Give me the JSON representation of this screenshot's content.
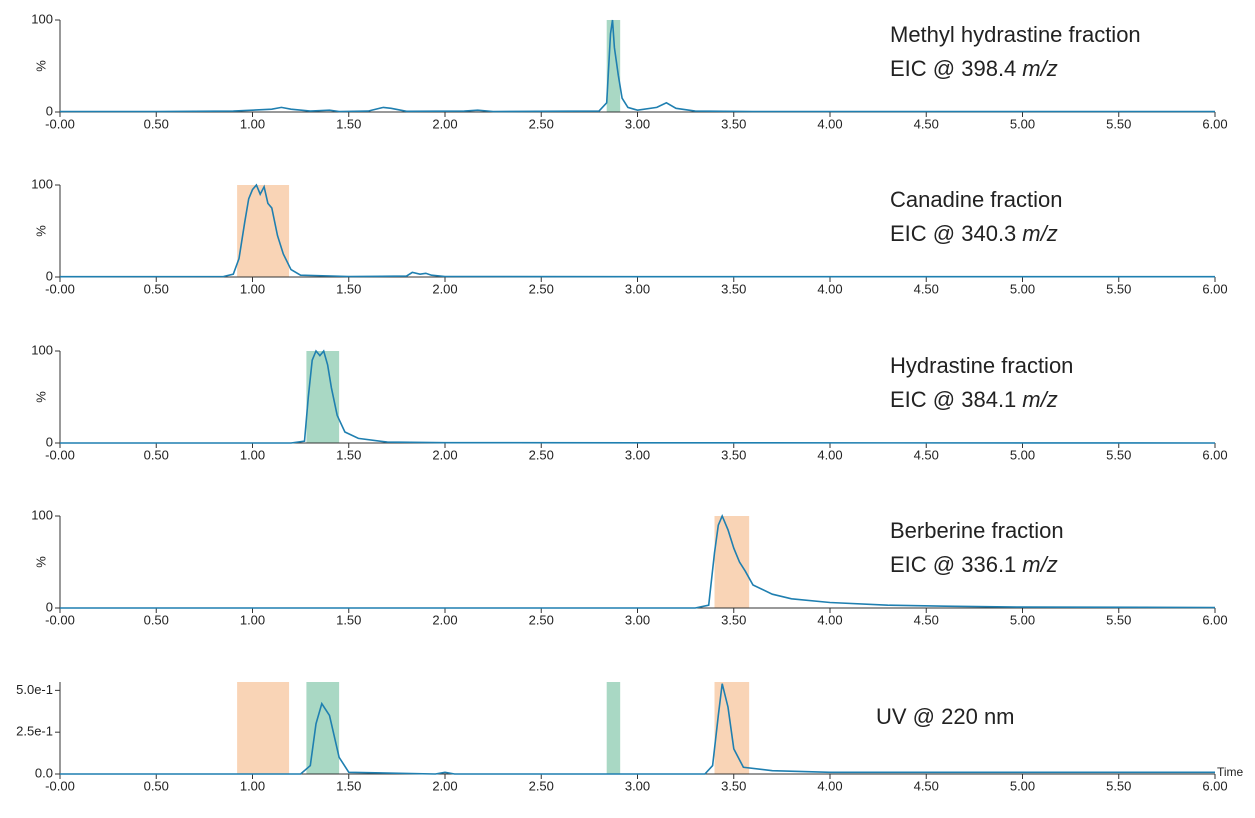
{
  "chart_data": [
    {
      "type": "line",
      "title": "Methyl hydrastine fraction",
      "subtitle": "EIC @ 398.4",
      "subtitle_unit": "m/z",
      "y_label": "%",
      "color": "#1f7fb0",
      "x": [
        0,
        0.5,
        0.9,
        1.1,
        1.15,
        1.2,
        1.3,
        1.4,
        1.45,
        1.6,
        1.68,
        1.72,
        1.8,
        2.1,
        2.17,
        2.25,
        2.8,
        2.84,
        2.86,
        2.87,
        2.88,
        2.9,
        2.92,
        2.95,
        3.0,
        3.1,
        3.15,
        3.2,
        3.3,
        3.6,
        4,
        5,
        6
      ],
      "values": [
        0.5,
        0.5,
        1,
        3,
        5,
        3,
        1,
        2,
        0.5,
        1,
        5,
        4,
        0.8,
        1,
        2,
        0.5,
        1,
        10,
        85,
        100,
        70,
        40,
        15,
        5,
        2,
        5,
        10,
        4,
        1,
        0.5,
        0.5,
        0.5,
        0.5
      ],
      "spans": [
        {
          "x": [
            2.84,
            2.91
          ],
          "color": "#a9d8c4"
        }
      ],
      "xlim": [
        0,
        6
      ],
      "ylim": [
        0,
        100
      ],
      "yticks": [
        0,
        100
      ],
      "xticks": [
        {
          "value": 0,
          "label": "-0.00"
        },
        {
          "value": 0.5,
          "label": "0.50"
        },
        {
          "value": 1,
          "label": "1.00"
        },
        {
          "value": 1.5,
          "label": "1.50"
        },
        {
          "value": 2,
          "label": "2.00"
        },
        {
          "value": 2.5,
          "label": "2.50"
        },
        {
          "value": 3,
          "label": "3.00"
        },
        {
          "value": 3.5,
          "label": "3.50"
        },
        {
          "value": 4,
          "label": "4.00"
        },
        {
          "value": 4.5,
          "label": "4.50"
        },
        {
          "value": 5,
          "label": "5.00"
        },
        {
          "value": 5.5,
          "label": "5.50"
        },
        {
          "value": 6,
          "label": "6.00"
        }
      ]
    },
    {
      "type": "line",
      "title": "Canadine fraction",
      "subtitle": "EIC @ 340.3",
      "subtitle_unit": "m/z",
      "y_label": "%",
      "color": "#1f7fb0",
      "x": [
        0,
        0.85,
        0.9,
        0.93,
        0.96,
        0.98,
        1.0,
        1.02,
        1.04,
        1.06,
        1.08,
        1.1,
        1.13,
        1.16,
        1.2,
        1.25,
        1.5,
        1.8,
        1.83,
        1.87,
        1.9,
        1.93,
        2.0,
        3,
        6
      ],
      "values": [
        0.3,
        0.5,
        3,
        20,
        60,
        85,
        95,
        100,
        90,
        98,
        80,
        75,
        45,
        25,
        8,
        2,
        0.5,
        1,
        5,
        3,
        4,
        2,
        0.5,
        0.3,
        0.3
      ],
      "spans": [
        {
          "x": [
            0.92,
            1.19
          ],
          "color": "#f9d4b6"
        }
      ],
      "xlim": [
        0,
        6
      ],
      "ylim": [
        0,
        100
      ],
      "yticks": [
        0,
        100
      ],
      "xticks": [
        {
          "value": 0,
          "label": "-0.00"
        },
        {
          "value": 0.5,
          "label": "0.50"
        },
        {
          "value": 1,
          "label": "1.00"
        },
        {
          "value": 1.5,
          "label": "1.50"
        },
        {
          "value": 2,
          "label": "2.00"
        },
        {
          "value": 2.5,
          "label": "2.50"
        },
        {
          "value": 3,
          "label": "3.00"
        },
        {
          "value": 3.5,
          "label": "3.50"
        },
        {
          "value": 4,
          "label": "4.00"
        },
        {
          "value": 4.5,
          "label": "4.50"
        },
        {
          "value": 5,
          "label": "5.00"
        },
        {
          "value": 5.5,
          "label": "5.50"
        },
        {
          "value": 6,
          "label": "6.00"
        }
      ]
    },
    {
      "type": "line",
      "title": "Hydrastine fraction",
      "subtitle": "EIC @ 384.1",
      "subtitle_unit": "m/z",
      "y_label": "%",
      "color": "#1f7fb0",
      "x": [
        0,
        1.2,
        1.27,
        1.29,
        1.31,
        1.33,
        1.35,
        1.37,
        1.39,
        1.41,
        1.44,
        1.48,
        1.55,
        1.7,
        2,
        6
      ],
      "values": [
        0,
        0,
        2,
        50,
        90,
        100,
        95,
        100,
        85,
        60,
        30,
        12,
        5,
        1,
        0.3,
        0
      ],
      "spans": [
        {
          "x": [
            1.28,
            1.45
          ],
          "color": "#a9d8c4"
        }
      ],
      "xlim": [
        0,
        6
      ],
      "ylim": [
        0,
        100
      ],
      "yticks": [
        0,
        100
      ],
      "xticks": [
        {
          "value": 0,
          "label": "-0.00"
        },
        {
          "value": 0.5,
          "label": "0.50"
        },
        {
          "value": 1,
          "label": "1.00"
        },
        {
          "value": 1.5,
          "label": "1.50"
        },
        {
          "value": 2,
          "label": "2.00"
        },
        {
          "value": 2.5,
          "label": "2.50"
        },
        {
          "value": 3,
          "label": "3.00"
        },
        {
          "value": 3.5,
          "label": "3.50"
        },
        {
          "value": 4,
          "label": "4.00"
        },
        {
          "value": 4.5,
          "label": "4.50"
        },
        {
          "value": 5,
          "label": "5.00"
        },
        {
          "value": 5.5,
          "label": "5.50"
        },
        {
          "value": 6,
          "label": "6.00"
        }
      ]
    },
    {
      "type": "line",
      "title": "Berberine fraction",
      "subtitle": "EIC @ 336.1",
      "subtitle_unit": "m/z",
      "y_label": "%",
      "color": "#1f7fb0",
      "x": [
        0,
        3.3,
        3.37,
        3.4,
        3.42,
        3.44,
        3.47,
        3.5,
        3.53,
        3.56,
        3.6,
        3.7,
        3.8,
        4.0,
        4.3,
        4.6,
        5,
        6
      ],
      "values": [
        0,
        0,
        3,
        60,
        90,
        100,
        85,
        65,
        50,
        40,
        25,
        15,
        10,
        6,
        3,
        2,
        1,
        0.5
      ],
      "spans": [
        {
          "x": [
            3.4,
            3.58
          ],
          "color": "#f9d4b6"
        }
      ],
      "xlim": [
        0,
        6
      ],
      "ylim": [
        0,
        100
      ],
      "yticks": [
        0,
        100
      ],
      "xticks": [
        {
          "value": 0,
          "label": "-0.00"
        },
        {
          "value": 0.5,
          "label": "0.50"
        },
        {
          "value": 1,
          "label": "1.00"
        },
        {
          "value": 1.5,
          "label": "1.50"
        },
        {
          "value": 2,
          "label": "2.00"
        },
        {
          "value": 2.5,
          "label": "2.50"
        },
        {
          "value": 3,
          "label": "3.00"
        },
        {
          "value": 3.5,
          "label": "3.50"
        },
        {
          "value": 4,
          "label": "4.00"
        },
        {
          "value": 4.5,
          "label": "4.50"
        },
        {
          "value": 5,
          "label": "5.00"
        },
        {
          "value": 5.5,
          "label": "5.50"
        },
        {
          "value": 6,
          "label": "6.00"
        }
      ]
    },
    {
      "type": "line",
      "title": "UV @ 220 nm",
      "x_label": "Time",
      "color": "#1f7fb0",
      "x": [
        0,
        1.25,
        1.3,
        1.33,
        1.36,
        1.4,
        1.45,
        1.5,
        1.95,
        2.0,
        2.05,
        3.35,
        3.39,
        3.42,
        3.44,
        3.47,
        3.5,
        3.55,
        3.7,
        4,
        5,
        6
      ],
      "values": [
        0,
        0,
        0.05,
        0.3,
        0.42,
        0.35,
        0.1,
        0.01,
        0,
        0.01,
        0,
        0,
        0.05,
        0.35,
        0.54,
        0.4,
        0.15,
        0.04,
        0.02,
        0.01,
        0.01,
        0.01
      ],
      "spans": [
        {
          "x": [
            0.92,
            1.19
          ],
          "color": "#f9d4b6"
        },
        {
          "x": [
            1.28,
            1.45
          ],
          "color": "#a9d8c4"
        },
        {
          "x": [
            2.84,
            2.91
          ],
          "color": "#a9d8c4"
        },
        {
          "x": [
            3.4,
            3.58
          ],
          "color": "#f9d4b6"
        }
      ],
      "xlim": [
        0,
        6
      ],
      "ylim": [
        0,
        0.55
      ],
      "yticks": [
        {
          "value": 0,
          "label": "0.0"
        },
        {
          "value": 0.25,
          "label": "2.5e-1"
        },
        {
          "value": 0.5,
          "label": "5.0e-1"
        }
      ],
      "xticks": [
        {
          "value": 0,
          "label": "-0.00"
        },
        {
          "value": 0.5,
          "label": "0.50"
        },
        {
          "value": 1,
          "label": "1.00"
        },
        {
          "value": 1.5,
          "label": "1.50"
        },
        {
          "value": 2,
          "label": "2.00"
        },
        {
          "value": 2.5,
          "label": "2.50"
        },
        {
          "value": 3,
          "label": "3.00"
        },
        {
          "value": 3.5,
          "label": "3.50"
        },
        {
          "value": 4,
          "label": "4.00"
        },
        {
          "value": 4.5,
          "label": "4.50"
        },
        {
          "value": 5,
          "label": "5.00"
        },
        {
          "value": 5.5,
          "label": "5.50"
        },
        {
          "value": 6,
          "label": "6.00"
        }
      ]
    }
  ]
}
